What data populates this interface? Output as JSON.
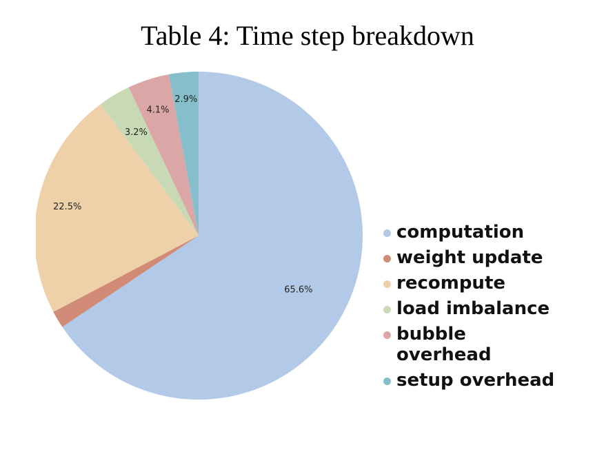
{
  "chart_data": {
    "type": "pie",
    "title": "Table 4: Time step breakdown",
    "legend_position": "right",
    "slices": [
      {
        "label": "computation",
        "value": 65.6,
        "value_label": "65.6%",
        "color": "#b3c9e8"
      },
      {
        "label": "weight update",
        "value": 1.7,
        "value_label": "",
        "color": "#d08a76"
      },
      {
        "label": "recompute",
        "value": 22.5,
        "value_label": "22.5%",
        "color": "#eed1a8"
      },
      {
        "label": "load imbalance",
        "value": 3.2,
        "value_label": "3.2%",
        "color": "#c7d9b5"
      },
      {
        "label": "bubble overhead",
        "value": 4.1,
        "value_label": "4.1%",
        "color": "#dba6a6"
      },
      {
        "label": "setup overhead",
        "value": 2.9,
        "value_label": "2.9%",
        "color": "#86bfcb"
      }
    ]
  }
}
